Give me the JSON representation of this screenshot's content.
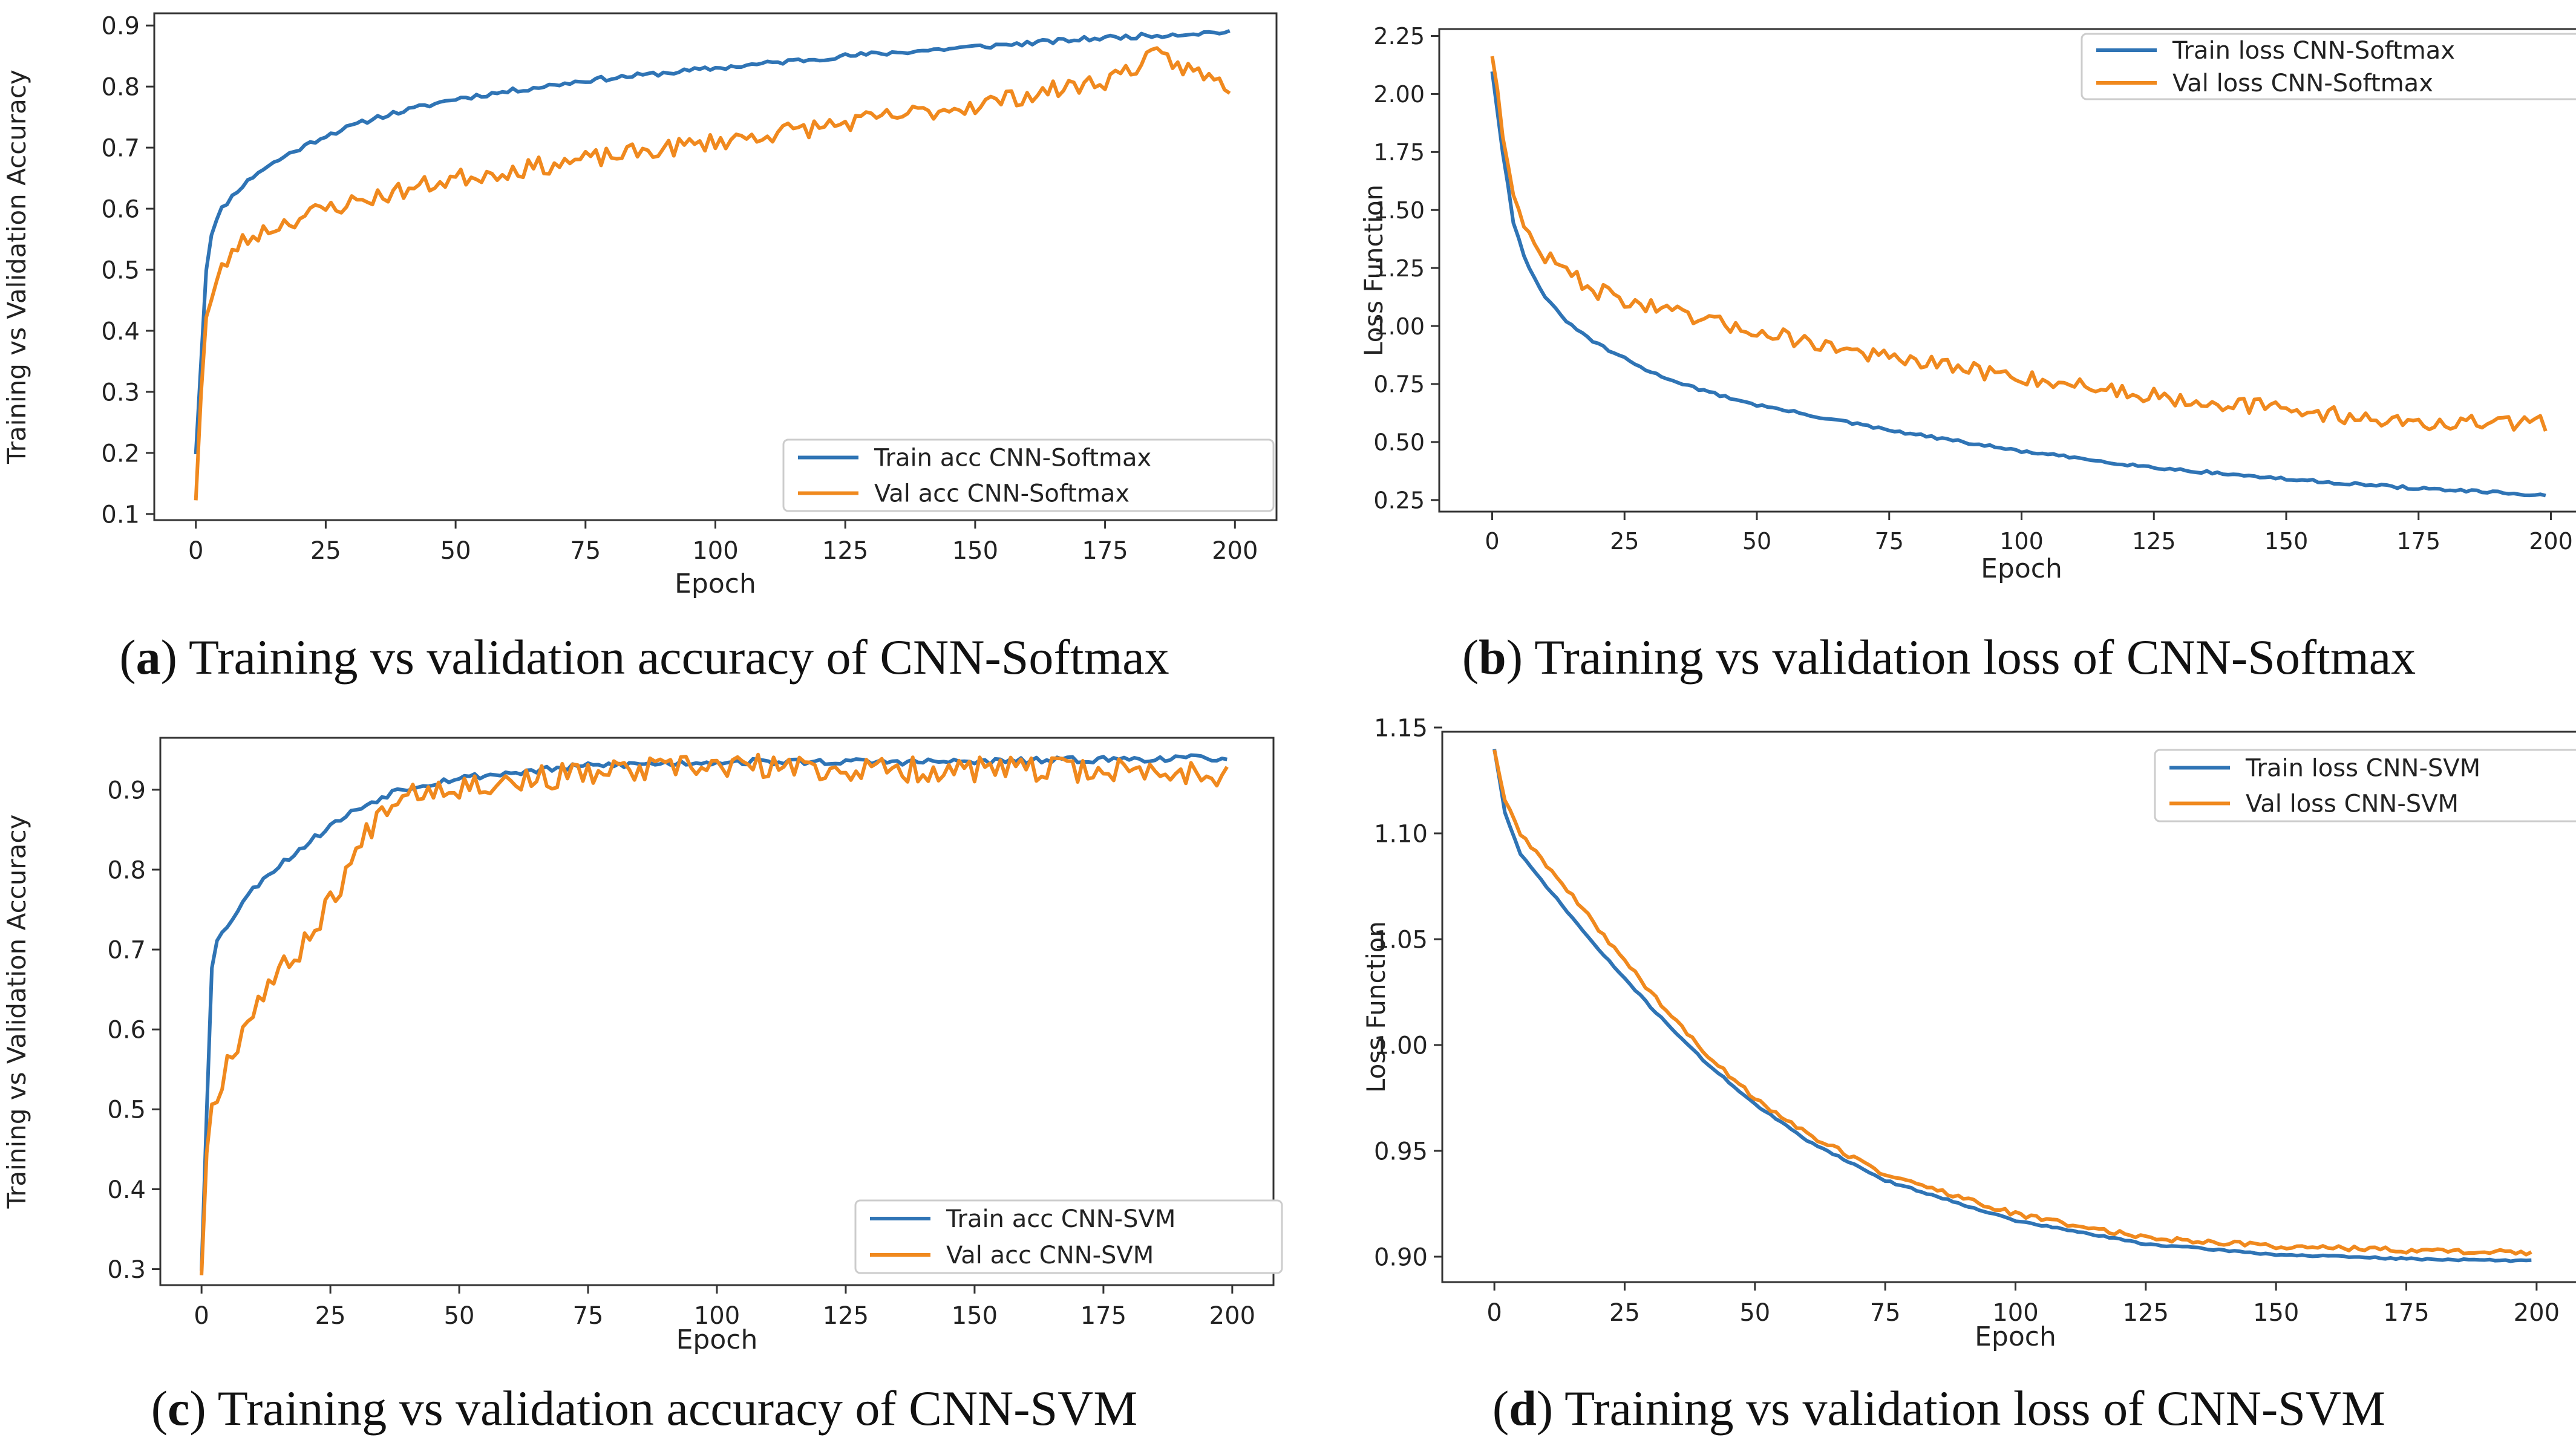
{
  "figure": {
    "captions": [
      {
        "letter": "a",
        "text": "Training vs validation accuracy of CNN-Softmax"
      },
      {
        "letter": "b",
        "text": "Training vs validation loss of CNN-Softmax"
      },
      {
        "letter": "c",
        "text": "Training vs validation accuracy of CNN-SVM"
      },
      {
        "letter": "d",
        "text": "Training vs validation loss of CNN-SVM"
      }
    ]
  },
  "chart_data": [
    {
      "id": "a",
      "type": "line",
      "xlabel": "Epoch",
      "ylabel": "Training vs Validation Accuracy",
      "xlim": [
        -8,
        208
      ],
      "ylim": [
        0.09,
        0.92
      ],
      "xticks": [
        0,
        25,
        50,
        75,
        100,
        125,
        150,
        175,
        200
      ],
      "yticks": [
        0.1,
        0.2,
        0.3,
        0.4,
        0.5,
        0.6,
        0.7,
        0.8,
        0.9
      ],
      "ytick_labels": [
        "0.1",
        "0.2",
        "0.3",
        "0.4",
        "0.5",
        "0.6",
        "0.7",
        "0.8",
        "0.9"
      ],
      "legend_position": "lower-right",
      "series": [
        {
          "name": "Train acc CNN-Softmax",
          "color": "#2f74b5",
          "noise": 0.004,
          "seed": 11,
          "x": [
            0,
            1,
            2,
            3,
            5,
            8,
            12,
            18,
            25,
            35,
            50,
            75,
            100,
            125,
            150,
            175,
            199
          ],
          "values": [
            0.2,
            0.35,
            0.5,
            0.56,
            0.6,
            0.63,
            0.66,
            0.69,
            0.72,
            0.75,
            0.78,
            0.81,
            0.83,
            0.85,
            0.865,
            0.88,
            0.89
          ]
        },
        {
          "name": "Val acc CNN-Softmax",
          "color": "#f0891e",
          "noise": 0.015,
          "seed": 23,
          "x": [
            0,
            1,
            2,
            3,
            5,
            8,
            12,
            18,
            25,
            35,
            50,
            75,
            100,
            125,
            150,
            175,
            185,
            199
          ],
          "values": [
            0.13,
            0.3,
            0.42,
            0.45,
            0.5,
            0.54,
            0.56,
            0.58,
            0.6,
            0.62,
            0.65,
            0.68,
            0.71,
            0.74,
            0.77,
            0.81,
            0.85,
            0.8
          ]
        }
      ]
    },
    {
      "id": "b",
      "type": "line",
      "xlabel": "Epoch",
      "ylabel": "Loss Function",
      "xlim": [
        -10,
        210
      ],
      "ylim": [
        0.2,
        2.28
      ],
      "xticks": [
        0,
        25,
        50,
        75,
        100,
        125,
        150,
        175,
        200
      ],
      "yticks": [
        0.25,
        0.5,
        0.75,
        1.0,
        1.25,
        1.5,
        1.75,
        2.0,
        2.25
      ],
      "ytick_labels": [
        "0.25",
        "0.50",
        "0.75",
        "1.00",
        "1.25",
        "1.50",
        "1.75",
        "2.00",
        "2.25"
      ],
      "legend_position": "top-right",
      "series": [
        {
          "name": "Train loss CNN-Softmax",
          "color": "#2f74b5",
          "noise": 0.006,
          "seed": 31,
          "x": [
            0,
            2,
            4,
            6,
            10,
            15,
            20,
            30,
            40,
            50,
            75,
            100,
            125,
            150,
            175,
            199
          ],
          "values": [
            2.1,
            1.75,
            1.45,
            1.3,
            1.12,
            1.0,
            0.92,
            0.8,
            0.72,
            0.66,
            0.55,
            0.46,
            0.39,
            0.34,
            0.3,
            0.27
          ]
        },
        {
          "name": "Val loss CNN-Softmax",
          "color": "#f0891e",
          "noise": 0.035,
          "seed": 47,
          "x": [
            0,
            2,
            4,
            6,
            10,
            15,
            20,
            30,
            40,
            50,
            75,
            100,
            125,
            150,
            175,
            199
          ],
          "values": [
            2.18,
            1.85,
            1.55,
            1.42,
            1.3,
            1.22,
            1.15,
            1.08,
            1.02,
            0.98,
            0.86,
            0.78,
            0.7,
            0.64,
            0.58,
            0.58
          ]
        }
      ]
    },
    {
      "id": "c",
      "type": "line",
      "xlabel": "Epoch",
      "ylabel": "Training vs Validation Accuracy",
      "xlim": [
        -8,
        208
      ],
      "ylim": [
        0.28,
        0.965
      ],
      "xticks": [
        0,
        25,
        50,
        75,
        100,
        125,
        150,
        175,
        200
      ],
      "yticks": [
        0.3,
        0.4,
        0.5,
        0.6,
        0.7,
        0.8,
        0.9
      ],
      "ytick_labels": [
        "0.3",
        "0.4",
        "0.5",
        "0.6",
        "0.7",
        "0.8",
        "0.9"
      ],
      "legend_position": "lower-right",
      "series": [
        {
          "name": "Train acc CNN-SVM",
          "color": "#2f74b5",
          "noise": 0.004,
          "seed": 53,
          "x": [
            0,
            1,
            2,
            3,
            5,
            8,
            12,
            18,
            25,
            30,
            38,
            50,
            75,
            100,
            125,
            150,
            175,
            199
          ],
          "values": [
            0.3,
            0.5,
            0.68,
            0.71,
            0.73,
            0.76,
            0.79,
            0.82,
            0.855,
            0.875,
            0.9,
            0.915,
            0.93,
            0.935,
            0.935,
            0.935,
            0.938,
            0.94
          ]
        },
        {
          "name": "Val acc CNN-SVM",
          "color": "#f0891e",
          "noise": 0.016,
          "seed": 67,
          "x": [
            0,
            1,
            2,
            3,
            5,
            8,
            12,
            18,
            25,
            30,
            35,
            40,
            50,
            75,
            100,
            125,
            150,
            175,
            199
          ],
          "values": [
            0.3,
            0.45,
            0.5,
            0.52,
            0.56,
            0.6,
            0.65,
            0.69,
            0.76,
            0.82,
            0.88,
            0.9,
            0.905,
            0.92,
            0.93,
            0.925,
            0.925,
            0.925,
            0.92
          ]
        }
      ]
    },
    {
      "id": "d",
      "type": "line",
      "xlabel": "Epoch",
      "ylabel": "Loss Function",
      "xlim": [
        -10,
        210
      ],
      "ylim": [
        0.888,
        1.148
      ],
      "xticks": [
        0,
        25,
        50,
        75,
        100,
        125,
        150,
        175,
        200
      ],
      "yticks": [
        0.9,
        0.95,
        1.0,
        1.05,
        1.1,
        1.15
      ],
      "ytick_labels": [
        "0.90",
        "0.95",
        "1.00",
        "1.05",
        "1.10",
        "1.15"
      ],
      "legend_position": "top-right",
      "series": [
        {
          "name": "Train loss CNN-SVM",
          "color": "#2f74b5",
          "noise": 0.0004,
          "seed": 71,
          "x": [
            0,
            2,
            5,
            10,
            15,
            20,
            30,
            40,
            50,
            60,
            75,
            100,
            125,
            150,
            175,
            199
          ],
          "values": [
            1.14,
            1.11,
            1.09,
            1.075,
            1.06,
            1.045,
            1.018,
            0.993,
            0.972,
            0.955,
            0.936,
            0.917,
            0.906,
            0.901,
            0.899,
            0.898
          ]
        },
        {
          "name": "Val loss CNN-SVM",
          "color": "#f0891e",
          "noise": 0.0012,
          "seed": 89,
          "x": [
            0,
            2,
            5,
            10,
            15,
            20,
            30,
            40,
            50,
            60,
            75,
            100,
            125,
            150,
            175,
            199
          ],
          "values": [
            1.14,
            1.115,
            1.1,
            1.085,
            1.07,
            1.055,
            1.025,
            0.997,
            0.975,
            0.958,
            0.939,
            0.92,
            0.909,
            0.905,
            0.903,
            0.902
          ]
        }
      ]
    }
  ]
}
